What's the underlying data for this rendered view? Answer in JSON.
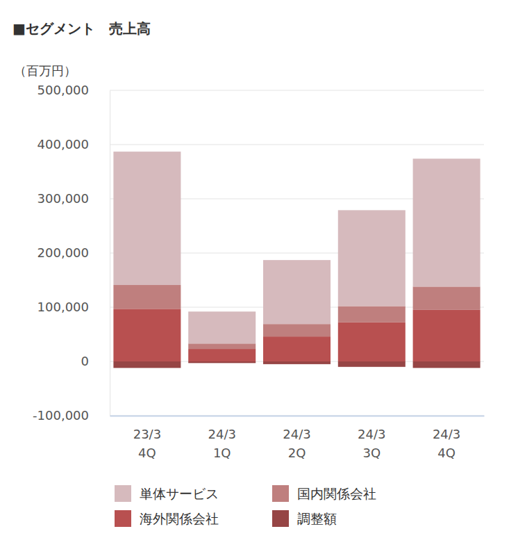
{
  "chart_data": {
    "type": "bar",
    "title": "■セグメント　売上高",
    "y_label": "（百万円）",
    "categories": [
      "23/3\n4Q",
      "24/3\n1Q",
      "24/3\n2Q",
      "24/3\n3Q",
      "24/3\n4Q"
    ],
    "series": [
      {
        "name": "単体サービス",
        "color": "#d6babd",
        "values": [
          246000,
          59000,
          118000,
          177000,
          236000
        ]
      },
      {
        "name": "国内関係会社",
        "color": "#bf7f7e",
        "values": [
          44000,
          10000,
          23000,
          30000,
          43000
        ]
      },
      {
        "name": "海外関係会社",
        "color": "#b85050",
        "values": [
          97000,
          23000,
          46000,
          72000,
          95000
        ]
      },
      {
        "name": "調整額",
        "color": "#964545",
        "values": [
          -12000,
          -3000,
          -5000,
          -10000,
          -12000
        ]
      }
    ],
    "ylim": [
      -100000,
      500000
    ],
    "yticks": [
      {
        "value": -100000,
        "label": "-100,000"
      },
      0,
      {
        "value": 100000,
        "label": "100,000"
      },
      {
        "value": 200000,
        "label": "200,000"
      },
      {
        "value": 300000,
        "label": "300,000"
      },
      {
        "value": 400000,
        "label": "400,000"
      },
      {
        "value": 500000,
        "label": "500,000"
      }
    ],
    "stacked": true,
    "grid": true,
    "legend": "bottom"
  }
}
